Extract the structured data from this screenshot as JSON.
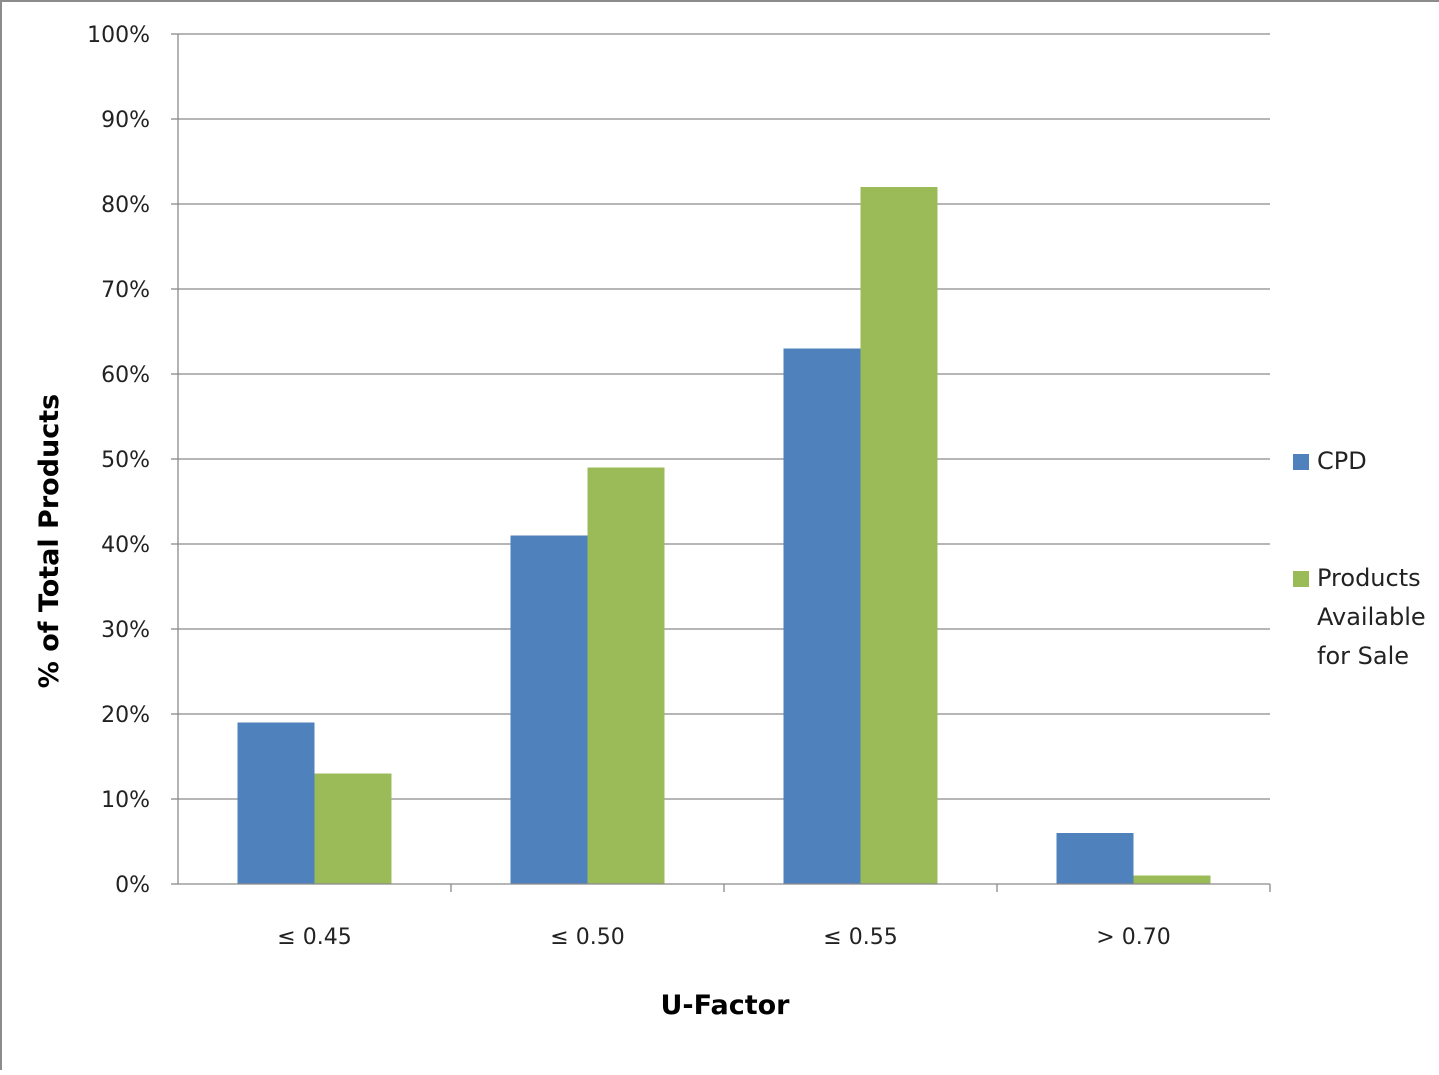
{
  "chart_data": {
    "type": "bar",
    "title": "",
    "xlabel": "U-Factor",
    "ylabel": "% of Total Products",
    "categories": [
      "≤ 0.45",
      "≤ 0.50",
      "≤ 0.55",
      "> 0.70"
    ],
    "series": [
      {
        "name": "CPD",
        "color": "#4f81bd",
        "values": [
          19,
          41,
          63,
          6
        ]
      },
      {
        "name": "Products Available for Sale",
        "color": "#9bbb59",
        "values": [
          13,
          49,
          82,
          1
        ]
      }
    ],
    "ylim": [
      0,
      100
    ],
    "yticks": [
      0,
      10,
      20,
      30,
      40,
      50,
      60,
      70,
      80,
      90,
      100
    ],
    "ytick_labels": [
      "0%",
      "10%",
      "20%",
      "30%",
      "40%",
      "50%",
      "60%",
      "70%",
      "80%",
      "90%",
      "100%"
    ],
    "grid": true,
    "legend": {
      "position": "right",
      "entries": [
        {
          "lines": [
            "CPD"
          ]
        },
        {
          "lines": [
            "Products",
            "Available",
            "for Sale"
          ]
        }
      ]
    }
  }
}
